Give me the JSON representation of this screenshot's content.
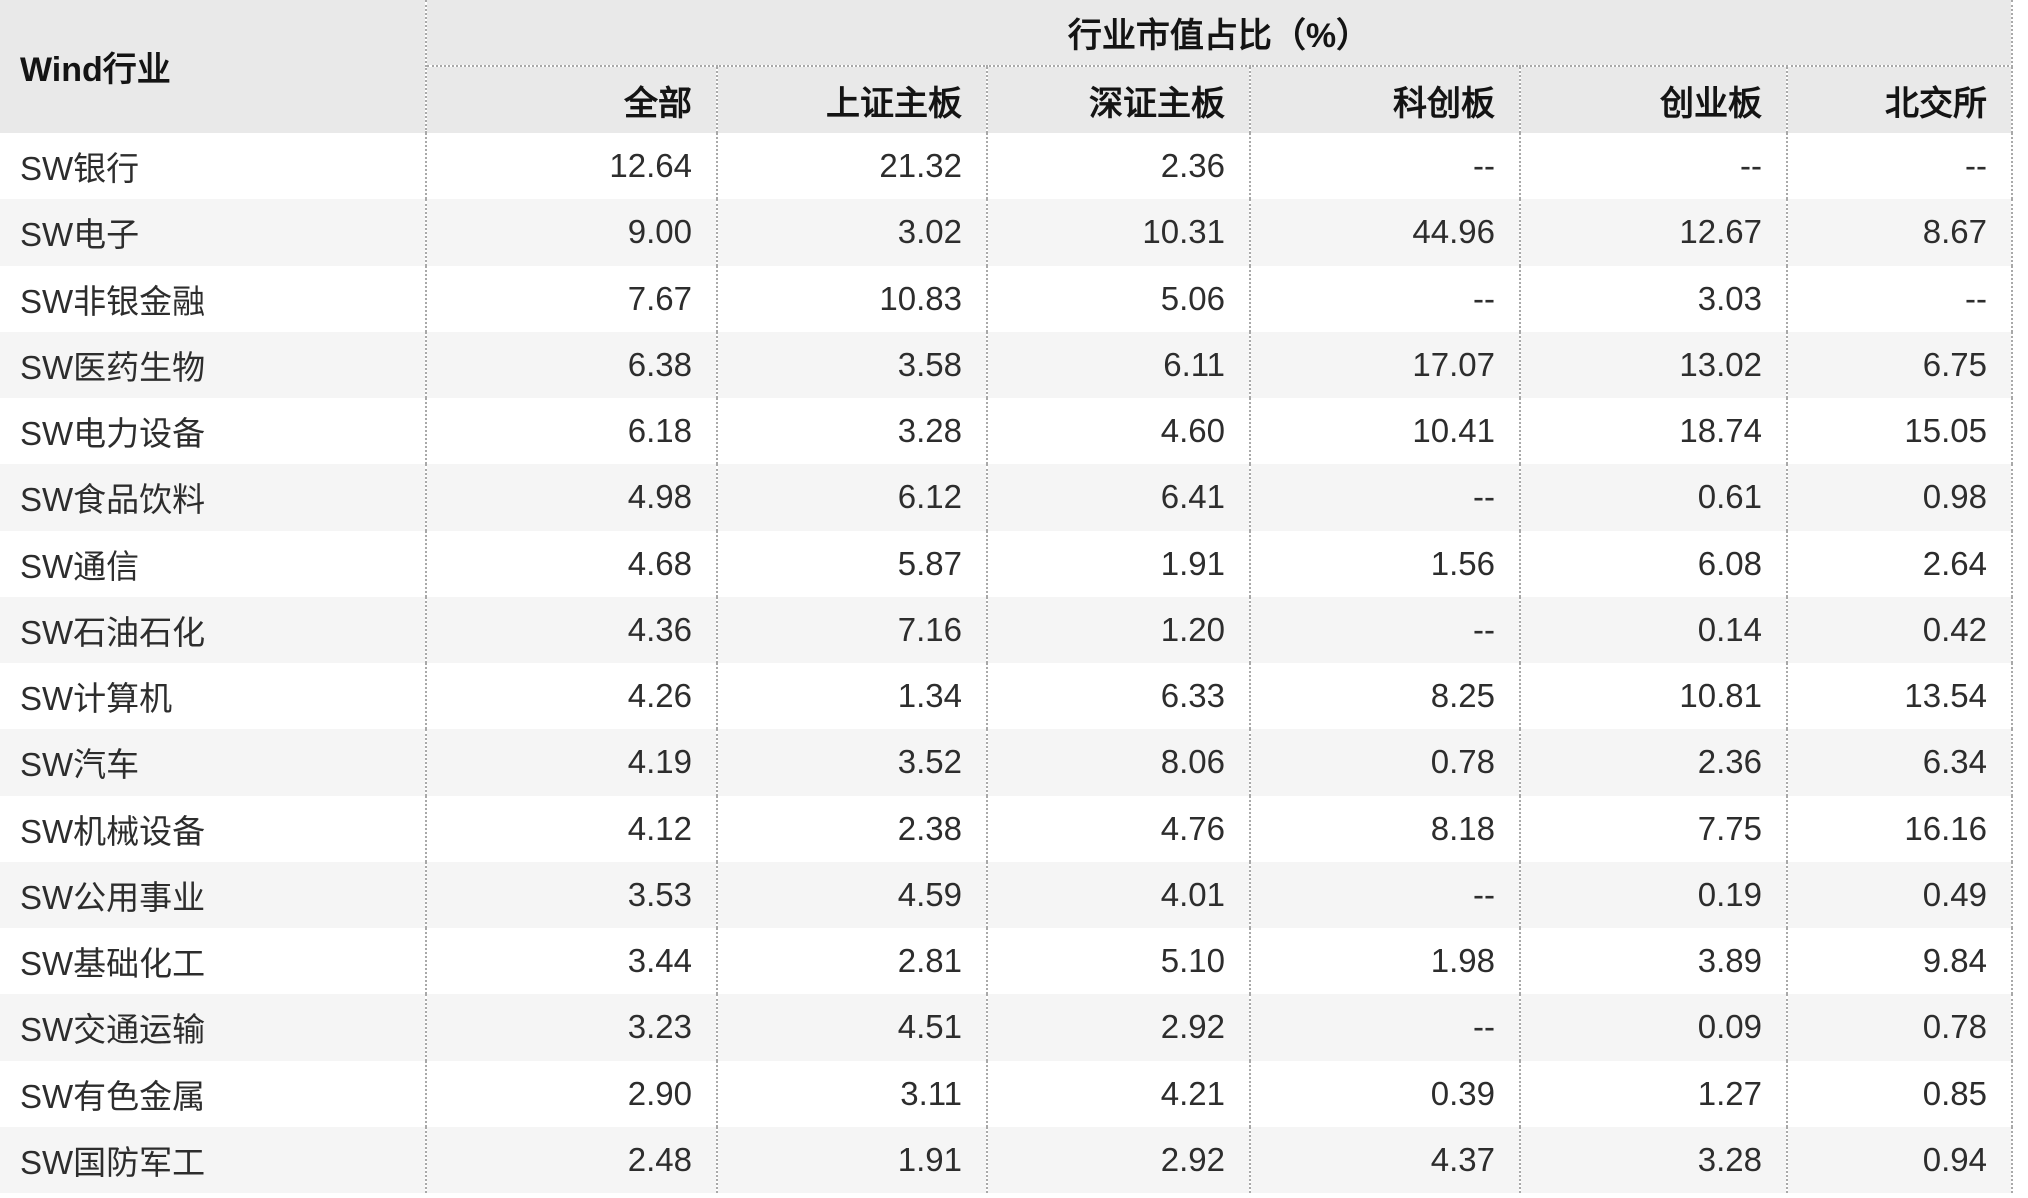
{
  "colors": {
    "header_bg": "#e9e9e9",
    "stripe_bg": "#f5f5f5",
    "border_dotted": "#a9a9a9",
    "text": "#2d2d2d",
    "header_text": "#141414"
  },
  "chart_data": {
    "type": "table",
    "title": "行业市值占比（%）",
    "row_header": "Wind行业",
    "columns": [
      "全部",
      "上证主板",
      "深证主板",
      "科创板",
      "创业板",
      "北交所"
    ],
    "missing_marker": "--",
    "rows": [
      {
        "industry": "SW银行",
        "values": [
          "12.64",
          "21.32",
          "2.36",
          "--",
          "--",
          "--"
        ]
      },
      {
        "industry": "SW电子",
        "values": [
          "9.00",
          "3.02",
          "10.31",
          "44.96",
          "12.67",
          "8.67"
        ]
      },
      {
        "industry": "SW非银金融",
        "values": [
          "7.67",
          "10.83",
          "5.06",
          "--",
          "3.03",
          "--"
        ]
      },
      {
        "industry": "SW医药生物",
        "values": [
          "6.38",
          "3.58",
          "6.11",
          "17.07",
          "13.02",
          "6.75"
        ]
      },
      {
        "industry": "SW电力设备",
        "values": [
          "6.18",
          "3.28",
          "4.60",
          "10.41",
          "18.74",
          "15.05"
        ]
      },
      {
        "industry": "SW食品饮料",
        "values": [
          "4.98",
          "6.12",
          "6.41",
          "--",
          "0.61",
          "0.98"
        ]
      },
      {
        "industry": "SW通信",
        "values": [
          "4.68",
          "5.87",
          "1.91",
          "1.56",
          "6.08",
          "2.64"
        ]
      },
      {
        "industry": "SW石油石化",
        "values": [
          "4.36",
          "7.16",
          "1.20",
          "--",
          "0.14",
          "0.42"
        ]
      },
      {
        "industry": "SW计算机",
        "values": [
          "4.26",
          "1.34",
          "6.33",
          "8.25",
          "10.81",
          "13.54"
        ]
      },
      {
        "industry": "SW汽车",
        "values": [
          "4.19",
          "3.52",
          "8.06",
          "0.78",
          "2.36",
          "6.34"
        ]
      },
      {
        "industry": "SW机械设备",
        "values": [
          "4.12",
          "2.38",
          "4.76",
          "8.18",
          "7.75",
          "16.16"
        ]
      },
      {
        "industry": "SW公用事业",
        "values": [
          "3.53",
          "4.59",
          "4.01",
          "--",
          "0.19",
          "0.49"
        ]
      },
      {
        "industry": "SW基础化工",
        "values": [
          "3.44",
          "2.81",
          "5.10",
          "1.98",
          "3.89",
          "9.84"
        ]
      },
      {
        "industry": "SW交通运输",
        "values": [
          "3.23",
          "4.51",
          "2.92",
          "--",
          "0.09",
          "0.78"
        ]
      },
      {
        "industry": "SW有色金属",
        "values": [
          "2.90",
          "3.11",
          "4.21",
          "0.39",
          "1.27",
          "0.85"
        ]
      },
      {
        "industry": "SW国防军工",
        "values": [
          "2.48",
          "1.91",
          "2.92",
          "4.37",
          "3.28",
          "0.94"
        ]
      }
    ]
  }
}
